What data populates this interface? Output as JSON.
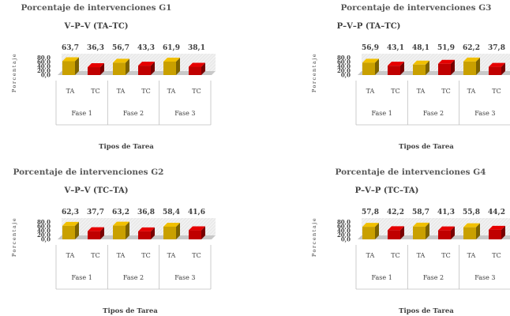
{
  "colors": {
    "ta": "#C9A000",
    "tc": "#C00000"
  },
  "chart_data": [
    {
      "type": "bar",
      "title": "Porcentaje de intervenciones G1",
      "subtitle": "V–P–V   (TA–TC)",
      "ylabel": "Porcentaje",
      "xlabel": "Tipos de Tarea",
      "yticks": [
        "0,0",
        "20,0",
        "40,0",
        "60,0",
        "80,0"
      ],
      "ylim": [
        0,
        80
      ],
      "categories": [
        "TA",
        "TC",
        "TA",
        "TC",
        "TA",
        "TC"
      ],
      "groups": [
        "Fase 1",
        "Fase 2",
        "Fase 3"
      ],
      "values": [
        63.7,
        36.3,
        56.7,
        43.3,
        61.9,
        38.1
      ],
      "value_labels": [
        "63,7",
        "36,3",
        "56,7",
        "43,3",
        "61,9",
        "38,1"
      ]
    },
    {
      "type": "bar",
      "title": "Porcentaje de intervenciones G3",
      "subtitle": "P–V–P   (TA–TC)",
      "ylabel": "Porcentaje",
      "xlabel": "Tipos de Tarea",
      "yticks": [
        "0,0",
        "20,0",
        "40,0",
        "60,0",
        "80,0"
      ],
      "ylim": [
        0,
        80
      ],
      "categories": [
        "TA",
        "TC",
        "TA",
        "TC",
        "TA",
        "TC"
      ],
      "groups": [
        "Fase 1",
        "Fase 2",
        "Fase 3"
      ],
      "values": [
        56.9,
        43.1,
        48.1,
        51.9,
        62.2,
        37.8
      ],
      "value_labels": [
        "56,9",
        "43,1",
        "48,1",
        "51,9",
        "62,2",
        "37,8"
      ]
    },
    {
      "type": "bar",
      "title": "Porcentaje de intervenciones G2",
      "subtitle": "V–P–V   (TC–TA)",
      "ylabel": "Porcentaje",
      "xlabel": "Tipos de Tarea",
      "yticks": [
        "0,0",
        "20,0",
        "40,0",
        "60,0",
        "80,0"
      ],
      "ylim": [
        0,
        80
      ],
      "categories": [
        "TA",
        "TC",
        "TA",
        "TC",
        "TA",
        "TC"
      ],
      "groups": [
        "Fase 1",
        "Fase 2",
        "Fase 3"
      ],
      "values": [
        62.3,
        37.7,
        63.2,
        36.8,
        58.4,
        41.6
      ],
      "value_labels": [
        "62,3",
        "37,7",
        "63,2",
        "36,8",
        "58,4",
        "41,6"
      ]
    },
    {
      "type": "bar",
      "title": "Porcentaje de intervenciones G4",
      "subtitle": "P–V–P (TC–TA)",
      "ylabel": "Porcentaje",
      "xlabel": "Tipos de Tarea",
      "yticks": [
        "0,0",
        "20,0",
        "40,0",
        "60,0",
        "80,0"
      ],
      "ylim": [
        0,
        80
      ],
      "categories": [
        "TA",
        "TC",
        "TA",
        "TC",
        "TA",
        "TC"
      ],
      "groups": [
        "Fase 1",
        "Fase 2",
        "Fase 3"
      ],
      "values": [
        57.8,
        42.2,
        58.7,
        41.3,
        55.8,
        44.2
      ],
      "value_labels": [
        "57,8",
        "42,2",
        "58,7",
        "41,3",
        "55,8",
        "44,2"
      ]
    }
  ]
}
